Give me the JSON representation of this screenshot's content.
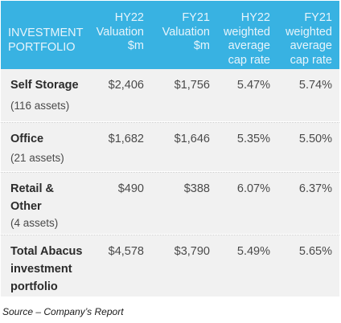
{
  "table": {
    "headers": {
      "col0": [
        "INVESTMENT",
        "PORTFOLIO"
      ],
      "col1": [
        "HY22",
        "Valuation",
        "$m"
      ],
      "col2": [
        "FY21",
        "Valuation",
        "$m"
      ],
      "col3": [
        "HY22",
        "weighted",
        "average",
        "cap rate"
      ],
      "col4": [
        "FY21",
        "weighted",
        "average",
        "cap rate"
      ]
    },
    "rows": [
      {
        "name": [
          "Self Storage"
        ],
        "sub": "(116 assets)",
        "hy22_val": "$2,406",
        "fy21_val": "$1,756",
        "hy22_cap": "5.47%",
        "fy21_cap": "5.74%"
      },
      {
        "name": [
          "Office"
        ],
        "sub": "(21 assets)",
        "hy22_val": "$1,682",
        "fy21_val": "$1,646",
        "hy22_cap": "5.35%",
        "fy21_cap": "5.50%"
      },
      {
        "name": [
          "Retail &",
          "Other"
        ],
        "sub": "(4 assets)",
        "hy22_val": "$490",
        "fy21_val": "$388",
        "hy22_cap": "6.07%",
        "fy21_cap": "6.37%"
      },
      {
        "name": [
          "Total Abacus",
          "investment",
          "portfolio"
        ],
        "sub": "",
        "hy22_val": "$4,578",
        "fy21_val": "$3,790",
        "hy22_cap": "5.49%",
        "fy21_cap": "5.65%"
      }
    ]
  },
  "source_note": "Source – Company’s Report",
  "colors": {
    "header_bg": "#38b2e2",
    "row_bg": "#f1f1f1"
  }
}
